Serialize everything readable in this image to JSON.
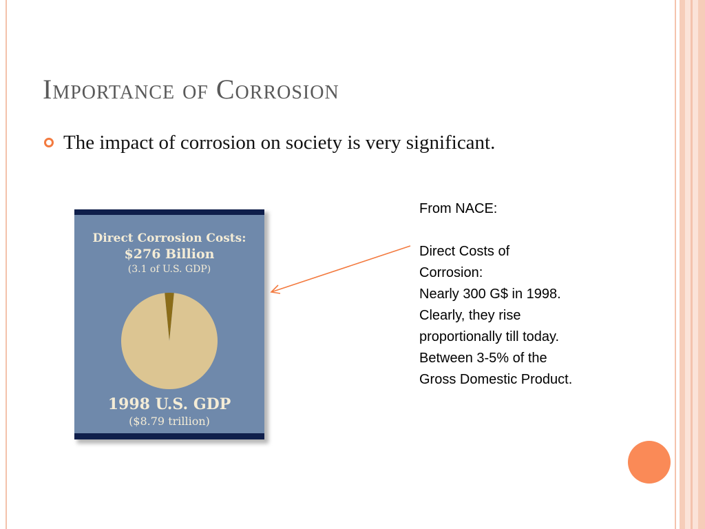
{
  "slide": {
    "title": "Importance of Corrosion",
    "bullet_text": "The impact of corrosion on society is very significant.",
    "note_lines": [
      "From NACE:",
      "",
      "Direct Costs of",
      "Corrosion:",
      "Nearly 300 G$ in 1998.",
      "Clearly, they rise",
      "proportionally till today.",
      "Between 3-5% of the",
      "Gross Domestic Product."
    ]
  },
  "chart_data": {
    "type": "pie",
    "title": "Direct Corrosion Costs:",
    "subtitle_lines": [
      "$276 Billion",
      "(3.1 of U.S. GDP)"
    ],
    "footer_lines": [
      "1998 U.S. GDP",
      "($8.79 trillion)"
    ],
    "slices": [
      {
        "value": 3.1,
        "color": "#8a6c18"
      },
      {
        "value": 96.9,
        "color": "#dcc592"
      }
    ],
    "legend": "none",
    "grid": false
  },
  "colors": {
    "accent_orange": "#f37a3f",
    "poster_blue": "#6f89ab",
    "poster_navy": "#0f1f4b"
  }
}
